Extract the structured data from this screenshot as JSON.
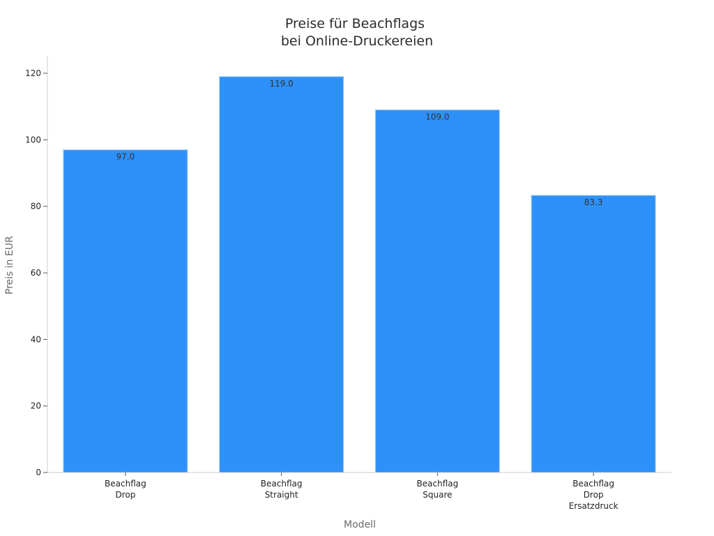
{
  "chart_data": {
    "type": "bar",
    "title": [
      "Preise für Beachflags",
      "bei Online-Druckereien"
    ],
    "xlabel": "Modell",
    "ylabel": "Preis in EUR",
    "categories": [
      [
        "Beachflag",
        "Drop"
      ],
      [
        "Beachflag",
        "Straight"
      ],
      [
        "Beachflag",
        "Square"
      ],
      [
        "Beachflag",
        "Drop",
        "Ersatzdruck"
      ]
    ],
    "values": [
      97.0,
      119.0,
      109.0,
      83.3
    ],
    "value_labels": [
      "97.0",
      "119.0",
      "109.0",
      "83.3"
    ],
    "ylim": [
      0,
      125
    ],
    "yticks": [
      0,
      20,
      40,
      60,
      80,
      100,
      120
    ],
    "grid": false,
    "legend": "none",
    "colors": {
      "bar": "#2d91f9",
      "bar_edge": "#a9cdf2",
      "axis": "#cccccc",
      "text": "#222222"
    }
  }
}
